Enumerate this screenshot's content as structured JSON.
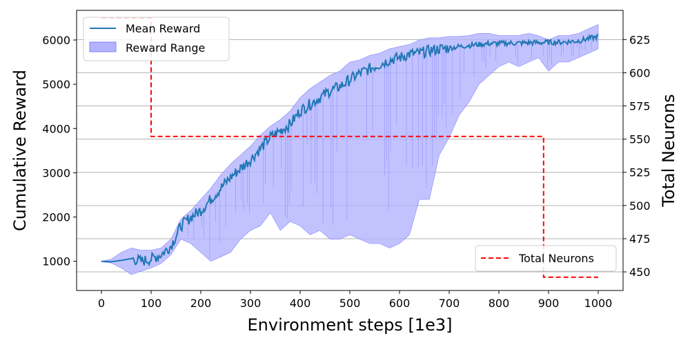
{
  "chart_data": {
    "type": "line",
    "xlabel": "Environment steps [1e3]",
    "ylabel_left": "Cumulative Reward",
    "ylabel_right": "Total Neurons",
    "xlim": [
      -50,
      1050
    ],
    "ylim_left": [
      340,
      6670
    ],
    "ylim_right": [
      436,
      647
    ],
    "xticks": [
      0,
      100,
      200,
      300,
      400,
      500,
      600,
      700,
      800,
      900,
      1000
    ],
    "yticks_left": [
      1000,
      2000,
      3000,
      4000,
      5000,
      6000
    ],
    "yticks_right": [
      450,
      475,
      500,
      525,
      550,
      575,
      600,
      625
    ],
    "grid": "horizontal lines at right-axis ticks",
    "legend_left": {
      "placement": "top-left",
      "entries": [
        "Mean Reward",
        "Reward Range"
      ]
    },
    "legend_right": {
      "placement": "lower-right",
      "entries": [
        "Total Neurons"
      ]
    },
    "colors": {
      "mean": "#1f77b4",
      "range_fill": "#b3b3ff",
      "range_edge": "#8080ff",
      "neurons": "#ff0000"
    },
    "series": [
      {
        "name": "Mean Reward",
        "x": [
          0,
          20,
          40,
          60,
          80,
          100,
          120,
          140,
          160,
          180,
          200,
          220,
          240,
          260,
          280,
          300,
          320,
          340,
          360,
          380,
          400,
          420,
          440,
          460,
          480,
          500,
          520,
          540,
          560,
          580,
          600,
          620,
          640,
          660,
          680,
          700,
          720,
          740,
          760,
          780,
          800,
          820,
          840,
          860,
          880,
          900,
          920,
          940,
          960,
          980,
          1000
        ],
        "y": [
          1000,
          990,
          1020,
          1060,
          1000,
          1050,
          1150,
          1350,
          1800,
          2000,
          2150,
          2400,
          2650,
          2900,
          3100,
          3300,
          3550,
          3800,
          3950,
          4100,
          4400,
          4550,
          4700,
          4850,
          4950,
          5100,
          5250,
          5350,
          5450,
          5550,
          5600,
          5680,
          5700,
          5760,
          5800,
          5820,
          5850,
          5880,
          5900,
          5920,
          5920,
          5930,
          5930,
          5940,
          5940,
          5950,
          5950,
          5960,
          5980,
          6030,
          6080
        ]
      },
      {
        "name": "Reward Range",
        "x": [
          0,
          20,
          40,
          60,
          80,
          100,
          120,
          140,
          160,
          180,
          200,
          220,
          240,
          260,
          280,
          300,
          320,
          340,
          360,
          380,
          400,
          420,
          440,
          460,
          480,
          500,
          520,
          540,
          560,
          580,
          600,
          620,
          640,
          660,
          680,
          700,
          720,
          740,
          760,
          780,
          800,
          820,
          840,
          860,
          880,
          900,
          920,
          940,
          960,
          980,
          1000
        ],
        "upper": [
          1000,
          1050,
          1200,
          1300,
          1250,
          1250,
          1300,
          1500,
          1950,
          2150,
          2400,
          2650,
          2950,
          3200,
          3400,
          3600,
          3850,
          4050,
          4200,
          4400,
          4700,
          4900,
          5050,
          5200,
          5300,
          5500,
          5550,
          5650,
          5700,
          5800,
          5850,
          5900,
          6000,
          6050,
          6050,
          6080,
          6080,
          6100,
          6150,
          6150,
          6100,
          6100,
          6100,
          6150,
          6100,
          6000,
          6100,
          6100,
          6150,
          6250,
          6350
        ],
        "lower": [
          990,
          960,
          850,
          700,
          780,
          850,
          950,
          1150,
          1500,
          1400,
          1200,
          1000,
          1100,
          1200,
          1500,
          1700,
          1800,
          2100,
          1700,
          1900,
          1800,
          1600,
          1700,
          1500,
          1500,
          1600,
          1500,
          1400,
          1400,
          1300,
          1400,
          1600,
          2400,
          2400,
          3400,
          3800,
          4300,
          4600,
          5000,
          5200,
          5400,
          5500,
          5400,
          5500,
          5600,
          5300,
          5500,
          5500,
          5600,
          5700,
          5800
        ]
      },
      {
        "name": "Total Neurons",
        "axis": "right",
        "x": [
          0,
          100,
          100,
          890,
          890,
          1000
        ],
        "y": [
          641,
          641,
          552,
          552,
          446,
          446
        ]
      }
    ]
  }
}
